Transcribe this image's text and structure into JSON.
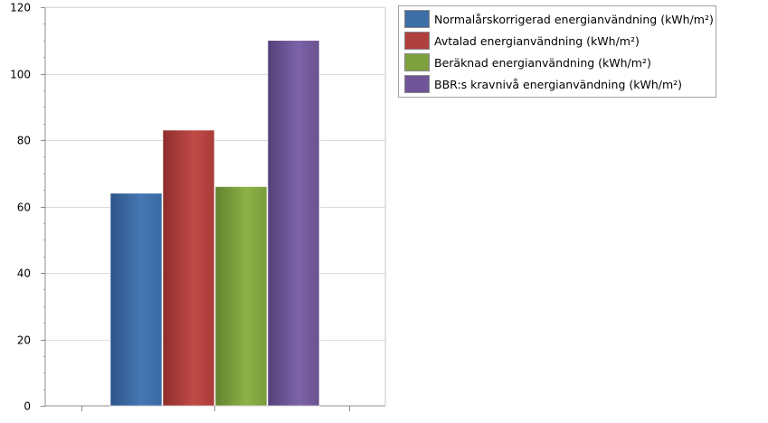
{
  "chart_data": {
    "type": "bar",
    "categories": [
      ""
    ],
    "series": [
      {
        "name": "Normalårskorrigerad energianvändning (kWh/m²)",
        "values": [
          64
        ],
        "color": "#3e6ea6"
      },
      {
        "name": "Avtalad energianvändning (kWh/m²)",
        "values": [
          83
        ],
        "color": "#b0403d"
      },
      {
        "name": "Beräknad energianvändning (kWh/m²)",
        "values": [
          66
        ],
        "color": "#7ea03e"
      },
      {
        "name": "BBR:s kravnivå energianvändning (kWh/m²)",
        "values": [
          110
        ],
        "color": "#6f5597"
      }
    ],
    "yticks": [
      "0",
      "20",
      "40",
      "60",
      "80",
      "100",
      "120"
    ],
    "ylim": [
      0,
      120
    ],
    "grid": true,
    "legend_position": "top-right"
  }
}
